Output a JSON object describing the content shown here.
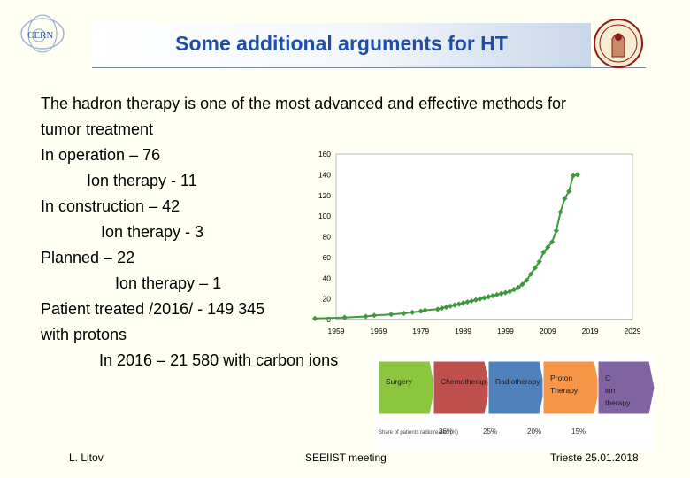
{
  "header": {
    "title": "Some additional arguments for HT",
    "logo_text": "CERN",
    "accent": "#1f4ea8"
  },
  "body": {
    "lines": [
      "The hadron therapy is one of the most advanced and effective methods for",
      "tumor treatment",
      "In operation – 76",
      "Ion therapy - 11",
      "In construction – 42",
      "Ion therapy - 3",
      "Planned – 22",
      "Ion therapy – 1",
      "Patient treated /2016/ - 149 345",
      "with protons",
      "In 2016 – 21 580 with carbon ions"
    ]
  },
  "chart_data": {
    "type": "line",
    "x": [
      1954,
      1961,
      1966,
      1968,
      1972,
      1975,
      1977,
      1979,
      1980,
      1983,
      1984,
      1985,
      1986,
      1987,
      1988,
      1989,
      1990,
      1991,
      1992,
      1993,
      1994,
      1995,
      1996,
      1997,
      1998,
      1999,
      2000,
      2001,
      2002,
      2003,
      2004,
      2005,
      2006,
      2007,
      2008,
      2009,
      2010,
      2011,
      2012,
      2013,
      2014,
      2015,
      2016
    ],
    "values": [
      1,
      2,
      3,
      4,
      5,
      6,
      7,
      8,
      9,
      10,
      11,
      12,
      13,
      14,
      15,
      16,
      17,
      18,
      19,
      20,
      21,
      22,
      23,
      24,
      25,
      26,
      27,
      29,
      31,
      34,
      38,
      44,
      50,
      56,
      65,
      70,
      75,
      86,
      104,
      117,
      124,
      139,
      140
    ],
    "xticks": [
      1959,
      1969,
      1979,
      1989,
      1999,
      2009,
      2019,
      2029
    ],
    "yticks": [
      0,
      20,
      40,
      60,
      80,
      100,
      120,
      140,
      160
    ],
    "xlim": [
      1959,
      2029
    ],
    "ylim": [
      0,
      160
    ],
    "grid": false,
    "color": "#3c9a3c"
  },
  "flow": {
    "steps": [
      {
        "label": "Surgery",
        "color": "#8cc63f"
      },
      {
        "label": "Chemotherapy",
        "color": "#c0504d"
      },
      {
        "label": "Radiotherapy",
        "color": "#4f81bd"
      },
      {
        "label": "Proton Therapy",
        "color": "#f79646"
      },
      {
        "label": "C ion therapy",
        "color": "#8064a2"
      }
    ],
    "caption": "Share of patients radiotreated (%)",
    "percents": [
      "36%",
      "25%",
      "20%",
      "15%"
    ]
  },
  "footer": {
    "author": "L. Litov",
    "meeting": "SEEIIST meeting",
    "place_date": "Trieste 25.01.2018"
  }
}
